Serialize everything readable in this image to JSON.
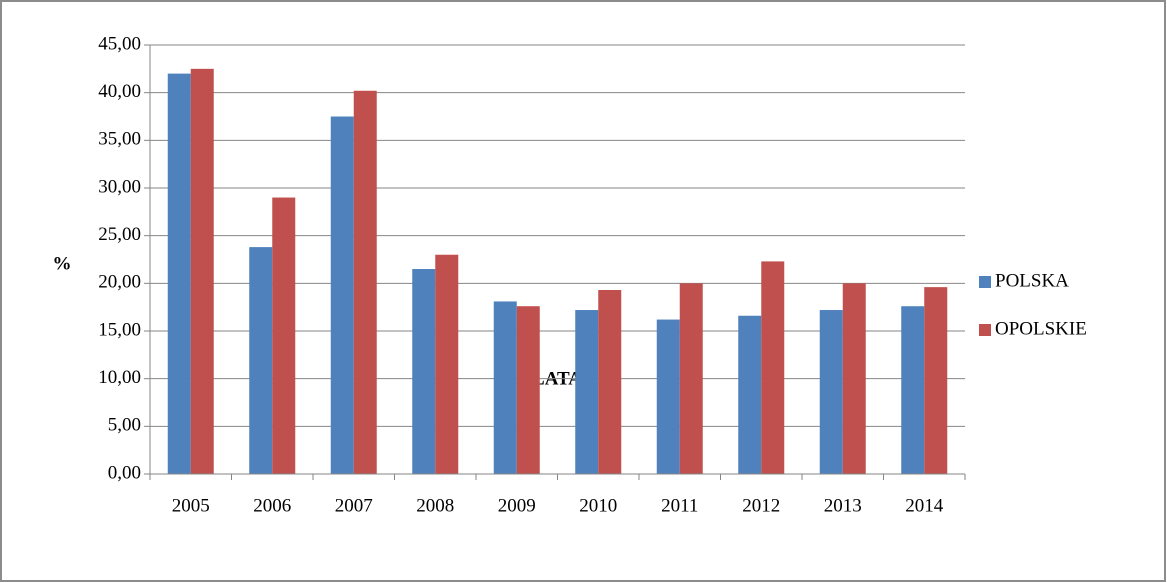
{
  "chart_data": {
    "type": "bar",
    "y_label": "%",
    "x_label": "LATA",
    "categories": [
      "2005",
      "2006",
      "2007",
      "2008",
      "2009",
      "2010",
      "2011",
      "2012",
      "2013",
      "2014"
    ],
    "series": [
      {
        "name": "POLSKA",
        "color": "#4f81bd",
        "values": [
          42.0,
          23.8,
          37.5,
          21.5,
          18.1,
          17.2,
          16.2,
          16.6,
          17.2,
          17.6
        ]
      },
      {
        "name": "OPOLSKIE",
        "color": "#c0504d",
        "values": [
          42.5,
          29.0,
          40.2,
          23.0,
          17.6,
          19.3,
          20.0,
          22.3,
          20.0,
          19.6
        ]
      }
    ],
    "ylim": [
      0,
      45
    ],
    "yticks": [
      {
        "value": 0,
        "label": "0,00"
      },
      {
        "value": 5,
        "label": "5,00"
      },
      {
        "value": 10,
        "label": "10,00"
      },
      {
        "value": 15,
        "label": "15,00"
      },
      {
        "value": 20,
        "label": "20,00"
      },
      {
        "value": 25,
        "label": "25,00"
      },
      {
        "value": 30,
        "label": "30,00"
      },
      {
        "value": 35,
        "label": "35,00"
      },
      {
        "value": 40,
        "label": "40,00"
      },
      {
        "value": 45,
        "label": "45,00"
      }
    ],
    "grid": true,
    "legend": "right"
  }
}
